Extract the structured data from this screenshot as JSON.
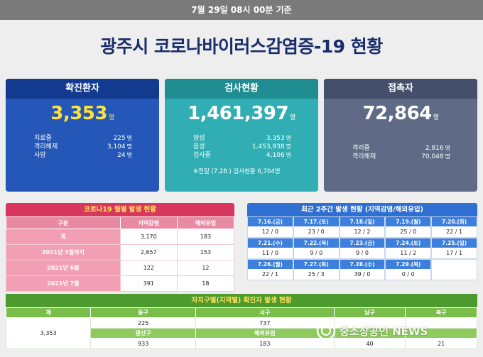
{
  "header": {
    "date": "7월 29일 08시 00분 기준",
    "title": "광주시 코로나바이러스감염증-19 현황"
  },
  "cards": {
    "confirmed": {
      "title": "확진환자",
      "total": "3,353",
      "unit": "명",
      "rows": [
        {
          "label": "치료중",
          "value": "225"
        },
        {
          "label": "격리해제",
          "value": "3,104"
        },
        {
          "label": "사망",
          "value": "24"
        }
      ]
    },
    "tests": {
      "title": "검사현황",
      "total": "1,461,397",
      "unit": "명",
      "rows": [
        {
          "label": "양성",
          "value": "3,353"
        },
        {
          "label": "음성",
          "value": "1,453,938"
        },
        {
          "label": "검사중",
          "value": "4,106"
        }
      ],
      "note": "※전일 (7.28.) 검사현황 6,704명"
    },
    "contacts": {
      "title": "접촉자",
      "total": "72,864",
      "unit": "명",
      "rows": [
        {
          "label": "격리중",
          "value": "2,816"
        },
        {
          "label": "격리해제",
          "value": "70,048"
        }
      ]
    }
  },
  "monthly": {
    "title": "코로나19 월별 발생 현황",
    "headers": [
      "구분",
      "지역감염",
      "해외유입"
    ],
    "rows": [
      {
        "label": "계",
        "local": "3,170",
        "overseas": "183"
      },
      {
        "label": "2021년 5월까지",
        "local": "2,657",
        "overseas": "153"
      },
      {
        "label": "2021년 6월",
        "local": "122",
        "overseas": "12"
      },
      {
        "label": "2021년 7월",
        "local": "391",
        "overseas": "18"
      }
    ]
  },
  "recent": {
    "title": "최근 2주간 발생 현황 (지역감염/해외유입)",
    "days": [
      {
        "date": "7.16.(금)",
        "value": "12 / 0"
      },
      {
        "date": "7.17.(토)",
        "value": "23 / 0"
      },
      {
        "date": "7.18.(일)",
        "value": "12 / 2"
      },
      {
        "date": "7.19.(월)",
        "value": "25 / 0"
      },
      {
        "date": "7.20.(화)",
        "value": "22 / 1"
      },
      {
        "date": "7.21.(수)",
        "value": "11 / 0"
      },
      {
        "date": "7.22.(목)",
        "value": "9 / 0"
      },
      {
        "date": "7.23.(금)",
        "value": "9 / 0"
      },
      {
        "date": "7.24.(토)",
        "value": "11 / 2"
      },
      {
        "date": "7.25.(일)",
        "value": "17 / 1"
      },
      {
        "date": "7.26.(월)",
        "value": "22 / 1"
      },
      {
        "date": "7.27.(화)",
        "value": "25 / 3"
      },
      {
        "date": "7.28.(수)",
        "value": "39 / 0"
      },
      {
        "date": "7.29.(목)",
        "value": "0 / 0"
      }
    ]
  },
  "district": {
    "title": "자치구별(지역별) 확진자 발생 현황",
    "total_label": "계",
    "total_value": "3,353",
    "row1_headers": [
      "동구",
      "서구",
      "남구",
      "북구"
    ],
    "row1_values": [
      "225",
      "737",
      "",
      ""
    ],
    "row2_headers": [
      "광산구",
      "해외유입",
      "",
      ""
    ],
    "row2_values": [
      "933",
      "183",
      "40",
      "21"
    ]
  },
  "watermark": {
    "text": "중소상공인 NEWS"
  },
  "colors": {
    "navy_title": "#182d6a",
    "confirmed_blue": "#2457b8",
    "tests_teal": "#31aeb3",
    "contacts_slate": "#5e6a86",
    "monthly_red": "#d8385e",
    "recent_blue": "#2f6fd2",
    "district_green": "#4d9a2e"
  }
}
